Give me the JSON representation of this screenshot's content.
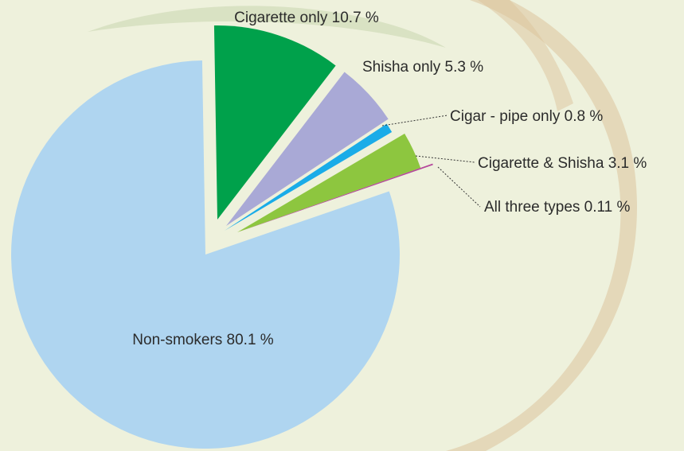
{
  "chart_data": {
    "type": "pie",
    "slices": [
      {
        "label": "Non-smokers 80.1 %",
        "value": 80.1,
        "color": "#afd5f0"
      },
      {
        "label": "Cigarette only 10.7 %",
        "value": 10.7,
        "color": "#00a14b"
      },
      {
        "label": "Shisha only 5.3 %",
        "value": 5.3,
        "color": "#a9a9d6"
      },
      {
        "label": "Cigar - pipe only 0.8 %",
        "value": 0.8,
        "color": "#1aace8"
      },
      {
        "label": "Cigarette & Shisha 3.1 %",
        "value": 3.1,
        "color": "#8dc63f"
      },
      {
        "label": "All three types 0.11 %",
        "value": 0.11,
        "color": "#b5479b"
      }
    ]
  },
  "colors": {
    "background": "#eef1dc",
    "swirl_green": "#c9d6ae",
    "swirl_brown": "#dcc39c",
    "leader_line": "#333333"
  }
}
